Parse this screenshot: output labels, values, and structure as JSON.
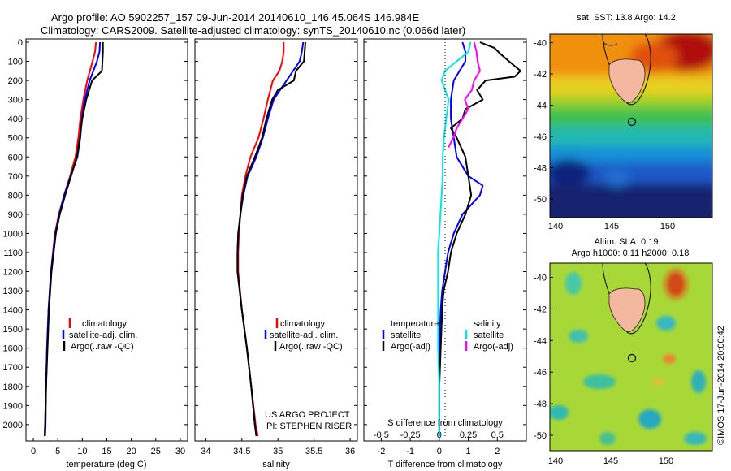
{
  "title": {
    "line1": "Argo profile: AO 5902257_157 09-Jun-2014 20140610_146 45.064S 146.984E",
    "line2": "Climatology: CARS2009. Satellite-adjusted climatology: synTS_20140610.nc (0.066d later)"
  },
  "depth_ticks": [
    "0",
    "100",
    "200",
    "300",
    "400",
    "500",
    "600",
    "700",
    "800",
    "900",
    "1000",
    "1100",
    "1200",
    "1300",
    "1400",
    "1500",
    "1600",
    "1700",
    "1800",
    "1900",
    "2000"
  ],
  "colors": {
    "climatology": "#ff0000",
    "satellite": "#0000ff",
    "argo": "#000000",
    "cyan": "#00e5ee",
    "magenta": "#ff00ff"
  },
  "temp_panel": {
    "xlabel": "temperature (deg C)",
    "xticks": [
      "0",
      "5",
      "10",
      "15",
      "20",
      "25",
      "30"
    ],
    "legend": [
      "climatology",
      "satellite-adj. clim.",
      "Argo(..raw -QC)"
    ]
  },
  "sal_panel": {
    "xlabel": "salinity",
    "xticks": [
      "34",
      "34.5",
      "35",
      "35.5",
      "36"
    ],
    "legend": [
      "climatology",
      "satellite-adj. clim.",
      "Argo(..raw -QC)"
    ],
    "project": "US ARGO PROJECT",
    "pi": "PI: STEPHEN RISER"
  },
  "diff_panel": {
    "xlabel": "T difference from climatology",
    "top_label": "S difference from climatology",
    "xticks": [
      "-2",
      "-1",
      "0",
      "1",
      "2"
    ],
    "sticks": [
      "-0.5",
      "-0.25",
      "0",
      "0.25",
      "0.5"
    ],
    "hdr_t": "temperature",
    "hdr_s": "salinity",
    "legend_t": [
      "satellite",
      "Argo(-adj)"
    ],
    "legend_s": [
      "satellite",
      "Argo(-adj)"
    ]
  },
  "map_sst": {
    "title": "sat. SST: 13.8  Argo: 14.2",
    "yticks": [
      "-40",
      "-42",
      "-44",
      "-46",
      "-48",
      "-50"
    ],
    "xticks": [
      "140",
      "145",
      "150"
    ]
  },
  "map_sla": {
    "title1": "Altim. SLA: 0.19",
    "title2": "Argo h1000: 0.11  h2000: 0.18",
    "yticks": [
      "-40",
      "-42",
      "-44",
      "-46",
      "-48",
      "-50"
    ],
    "xticks": [
      "140",
      "145",
      "150"
    ]
  },
  "stamp": "©IMOS 17-Jun-2014 20:00:42",
  "chart_data": [
    {
      "type": "line",
      "xlabel": "temperature (deg C)",
      "ylabel": "",
      "xlim": [
        -1.5,
        31.5
      ],
      "ylim": [
        2060,
        0
      ],
      "series": [
        {
          "name": "climatology",
          "depth": [
            0,
            50,
            100,
            200,
            300,
            400,
            500,
            600,
            700,
            800,
            900,
            1000,
            1200,
            1400,
            1600,
            1800,
            2000,
            2060
          ],
          "values": [
            12.8,
            12.6,
            12.1,
            11.0,
            10.2,
            9.6,
            9.2,
            8.6,
            7.5,
            6.3,
            5.2,
            4.4,
            3.6,
            3.1,
            2.8,
            2.6,
            2.4,
            2.3
          ]
        },
        {
          "name": "satellite-adj. clim.",
          "depth": [
            0,
            50,
            100,
            200,
            300,
            400,
            500,
            600,
            700,
            800,
            900,
            1000,
            1200,
            1400,
            1600,
            1800,
            2000,
            2060
          ],
          "values": [
            13.6,
            13.5,
            13.0,
            11.5,
            10.5,
            9.9,
            9.6,
            9.0,
            7.6,
            6.3,
            5.3,
            4.5,
            3.6,
            3.1,
            2.8,
            2.6,
            2.4,
            2.3
          ]
        },
        {
          "name": "Argo(..raw -QC)",
          "depth": [
            0,
            50,
            100,
            150,
            200,
            300,
            400,
            500,
            600,
            700,
            800,
            900,
            1000,
            1200,
            1400,
            1600,
            1800,
            2000,
            2060
          ],
          "values": [
            14.2,
            14.2,
            14.1,
            14.0,
            12.0,
            10.8,
            10.0,
            9.5,
            8.9,
            7.7,
            6.5,
            5.4,
            4.6,
            3.7,
            3.2,
            2.9,
            2.6,
            2.5,
            2.4
          ]
        }
      ]
    },
    {
      "type": "line",
      "xlabel": "salinity",
      "ylabel": "",
      "xlim": [
        33.85,
        36.1
      ],
      "ylim": [
        2060,
        0
      ],
      "series": [
        {
          "name": "climatology",
          "depth": [
            0,
            50,
            100,
            150,
            200,
            300,
            400,
            500,
            600,
            700,
            800,
            900,
            1000,
            1100,
            1200,
            1400,
            1600,
            1800,
            2000,
            2060
          ],
          "values": [
            35.08,
            35.08,
            35.06,
            35.02,
            34.93,
            34.86,
            34.8,
            34.73,
            34.62,
            34.55,
            34.5,
            34.48,
            34.46,
            34.45,
            34.45,
            34.5,
            34.57,
            34.63,
            34.69,
            34.72
          ]
        },
        {
          "name": "satellite-adj. clim.",
          "depth": [
            0,
            50,
            100,
            200,
            300,
            400,
            500,
            600,
            700,
            800,
            900,
            1000,
            1100,
            1200,
            1400,
            1600,
            1800,
            2000,
            2060
          ],
          "values": [
            35.35,
            35.33,
            35.3,
            35.12,
            34.94,
            34.86,
            34.79,
            34.7,
            34.58,
            34.52,
            34.48,
            34.45,
            34.44,
            34.44,
            34.5,
            34.57,
            34.63,
            34.68,
            34.7
          ]
        },
        {
          "name": "Argo(..raw -QC)",
          "depth": [
            0,
            50,
            100,
            150,
            200,
            250,
            300,
            400,
            500,
            600,
            700,
            800,
            900,
            1000,
            1100,
            1200,
            1400,
            1600,
            1800,
            2000,
            2060
          ],
          "values": [
            35.38,
            35.37,
            35.36,
            35.25,
            35.22,
            35.0,
            34.92,
            34.84,
            34.78,
            34.68,
            34.57,
            34.51,
            34.48,
            34.45,
            34.44,
            34.44,
            34.5,
            34.57,
            34.63,
            34.68,
            34.7
          ]
        }
      ]
    },
    {
      "type": "line",
      "xlabel": "T difference from climatology",
      "ylabel": "",
      "xlim": [
        -2.6,
        3.0
      ],
      "xlim_salinity": [
        -0.65,
        0.75
      ],
      "ylim": [
        2060,
        0
      ],
      "series": [
        {
          "name": "satellite",
          "quantity": "temperature",
          "depth": [
            0,
            50,
            100,
            200,
            300,
            400,
            500,
            600,
            700,
            750,
            800,
            900,
            1000,
            1100,
            1200,
            1300,
            1400,
            1600,
            1800,
            2000,
            2060
          ],
          "values": [
            0.8,
            0.9,
            0.9,
            0.5,
            0.4,
            0.4,
            0.5,
            0.6,
            1.0,
            1.5,
            1.4,
            0.8,
            0.5,
            0.3,
            0.2,
            0.1,
            0.05,
            0.0,
            0.0,
            0.0,
            0.0
          ]
        },
        {
          "name": "Argo(-adj)",
          "quantity": "temperature",
          "depth": [
            0,
            30,
            60,
            100,
            150,
            180,
            200,
            250,
            300,
            350,
            400,
            450,
            500,
            600,
            700,
            800,
            900,
            1000,
            1100,
            1200,
            1300,
            1400,
            1600,
            1800,
            2000,
            2060
          ],
          "values": [
            1.4,
            1.9,
            2.1,
            2.4,
            2.8,
            2.6,
            1.6,
            1.3,
            1.5,
            0.9,
            0.8,
            0.4,
            0.6,
            0.9,
            1.0,
            1.1,
            0.9,
            0.6,
            0.4,
            0.3,
            0.15,
            0.1,
            0.05,
            0.0,
            0.0,
            0.0
          ]
        },
        {
          "name": "satellite",
          "quantity": "salinity",
          "depth": [
            0,
            50,
            100,
            150,
            200,
            250,
            300,
            400,
            500,
            600,
            700,
            800,
            900,
            1000,
            1100,
            1200,
            1300,
            1400,
            1600,
            1800,
            2000,
            2060
          ],
          "values": [
            0.27,
            0.25,
            0.15,
            0.05,
            0.02,
            0.05,
            0.08,
            0.06,
            0.04,
            0.03,
            0.03,
            0.02,
            0.01,
            0.0,
            -0.01,
            -0.01,
            -0.01,
            -0.01,
            -0.01,
            0.0,
            0.0,
            0.0
          ]
        },
        {
          "name": "Argo(-adj)",
          "quantity": "salinity",
          "depth": [
            0,
            50,
            100,
            150,
            200,
            250,
            300,
            350,
            400,
            450,
            500,
            550
          ],
          "values": [
            0.3,
            0.32,
            0.33,
            0.35,
            0.3,
            0.28,
            0.22,
            0.25,
            0.2,
            0.15,
            0.12,
            0.08
          ]
        }
      ]
    }
  ]
}
